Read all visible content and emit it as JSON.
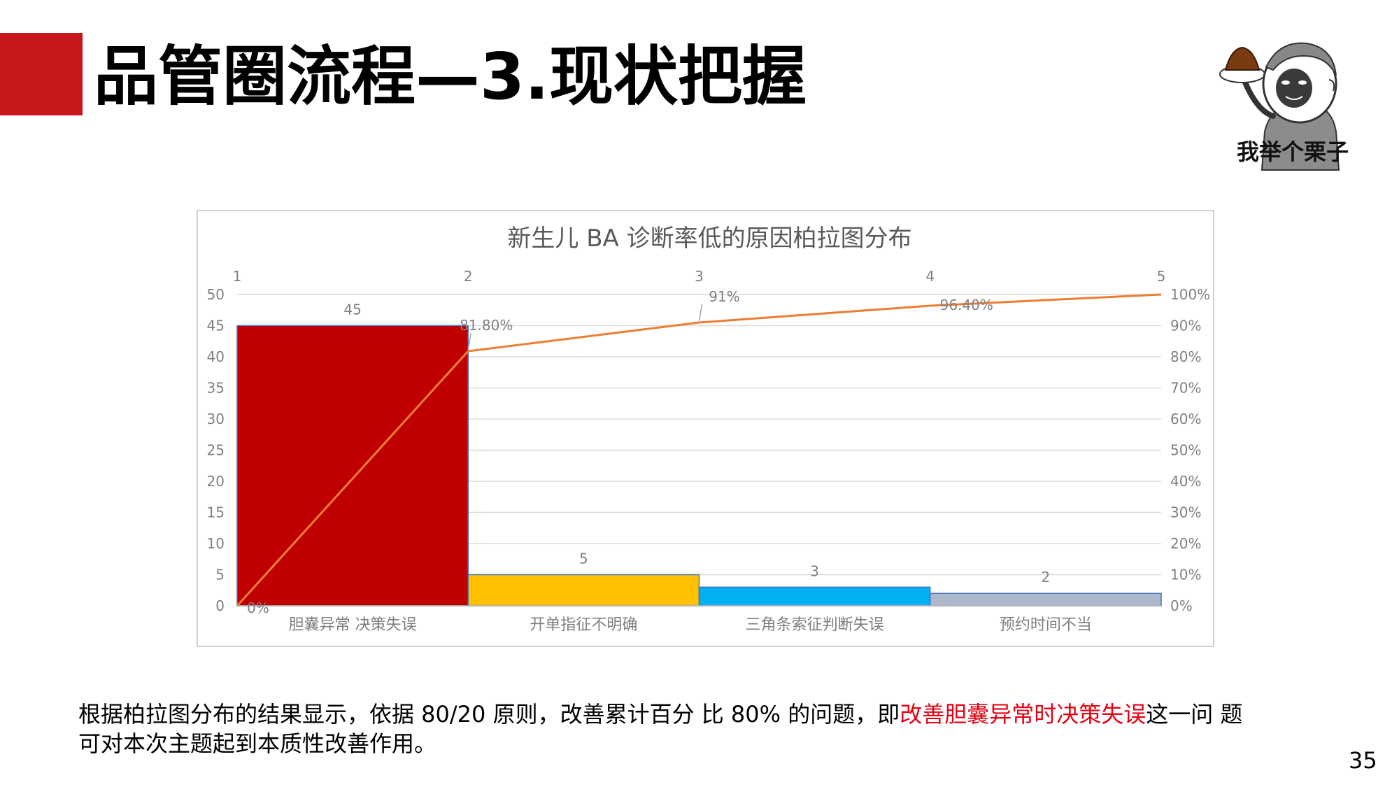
{
  "slide": {
    "title": "品管圈流程—3.现状把握",
    "page_number": "35",
    "meme_caption": "我举个栗子",
    "conclusion": {
      "part1": "根据柏拉图分布的结果显示，依据 80/20 原则，改善累计百分 比 80% 的问题，即",
      "highlight": "改善胆囊异常时决策失误",
      "part2": "这一问 题可对本次主题起到本质性改善作用。"
    }
  },
  "colors": {
    "accent_red": "#c8161d",
    "highlight_text": "#e60012",
    "bar_1": "#c00000",
    "bar_2": "#ffc000",
    "bar_3": "#00b0f0",
    "bar_4": "#adb9ca",
    "cumulative_line": "#ed7d31"
  },
  "chart_data": {
    "type": "bar",
    "title": "新生儿 BA 诊断率低的原因柏拉图分布",
    "categories": [
      "胆囊异常 决策失误",
      "开单指征不明确",
      "三角条索征判断失误",
      "预约时间不当"
    ],
    "values": [
      45,
      5,
      3,
      2
    ],
    "value_labels": [
      "45",
      "5",
      "3",
      "2"
    ],
    "ylim": [
      0,
      50
    ],
    "y_ticks": [
      "0",
      "5",
      "10",
      "15",
      "20",
      "25",
      "30",
      "35",
      "40",
      "45",
      "50"
    ],
    "secondary_axis": {
      "ylim": [
        0,
        100
      ],
      "ticks": [
        "0%",
        "10%",
        "20%",
        "30%",
        "40%",
        "50%",
        "60%",
        "70%",
        "80%",
        "90%",
        "100%"
      ]
    },
    "top_axis_ticks": [
      "1",
      "2",
      "3",
      "4",
      "5"
    ],
    "cumulative": {
      "x": [
        1,
        2,
        3,
        4,
        5
      ],
      "values": [
        0,
        81.8,
        91,
        96.4,
        100
      ],
      "labels": [
        "0%",
        "81.80%",
        "91%",
        "96.40%",
        ""
      ]
    },
    "grid": true
  }
}
